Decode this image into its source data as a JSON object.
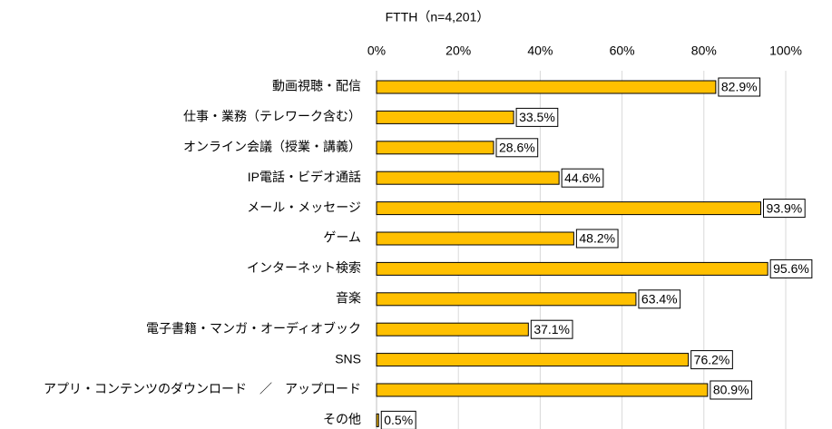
{
  "chart_data": {
    "type": "bar",
    "orientation": "horizontal",
    "title": "FTTH（n=4,201）",
    "categories": [
      "動画視聴・配信",
      "仕事・業務（テレワーク含む）",
      "オンライン会議（授業・講義）",
      "IP電話・ビデオ通話",
      "メール・メッセージ",
      "ゲーム",
      "インターネット検索",
      "音楽",
      "電子書籍・マンガ・オーディオブック",
      "SNS",
      "アプリ・コンテンツのダウンロード　／　アップロード",
      "その他"
    ],
    "values": [
      82.9,
      33.5,
      28.6,
      44.6,
      93.9,
      48.2,
      95.6,
      63.4,
      37.1,
      76.2,
      80.9,
      0.5
    ],
    "value_labels": [
      "82.9%",
      "33.5%",
      "28.6%",
      "44.6%",
      "93.9%",
      "48.2%",
      "95.6%",
      "63.4%",
      "37.1%",
      "76.2%",
      "80.9%",
      "0.5%"
    ],
    "color": "#ffc000",
    "xlim": [
      0,
      100
    ],
    "xticks": [
      {
        "value": 0,
        "label": "0%"
      },
      {
        "value": 20,
        "label": "20%"
      },
      {
        "value": 40,
        "label": "40%"
      },
      {
        "value": 60,
        "label": "60%"
      },
      {
        "value": 80,
        "label": "80%"
      },
      {
        "value": 100,
        "label": "100%"
      }
    ],
    "grid": true
  }
}
